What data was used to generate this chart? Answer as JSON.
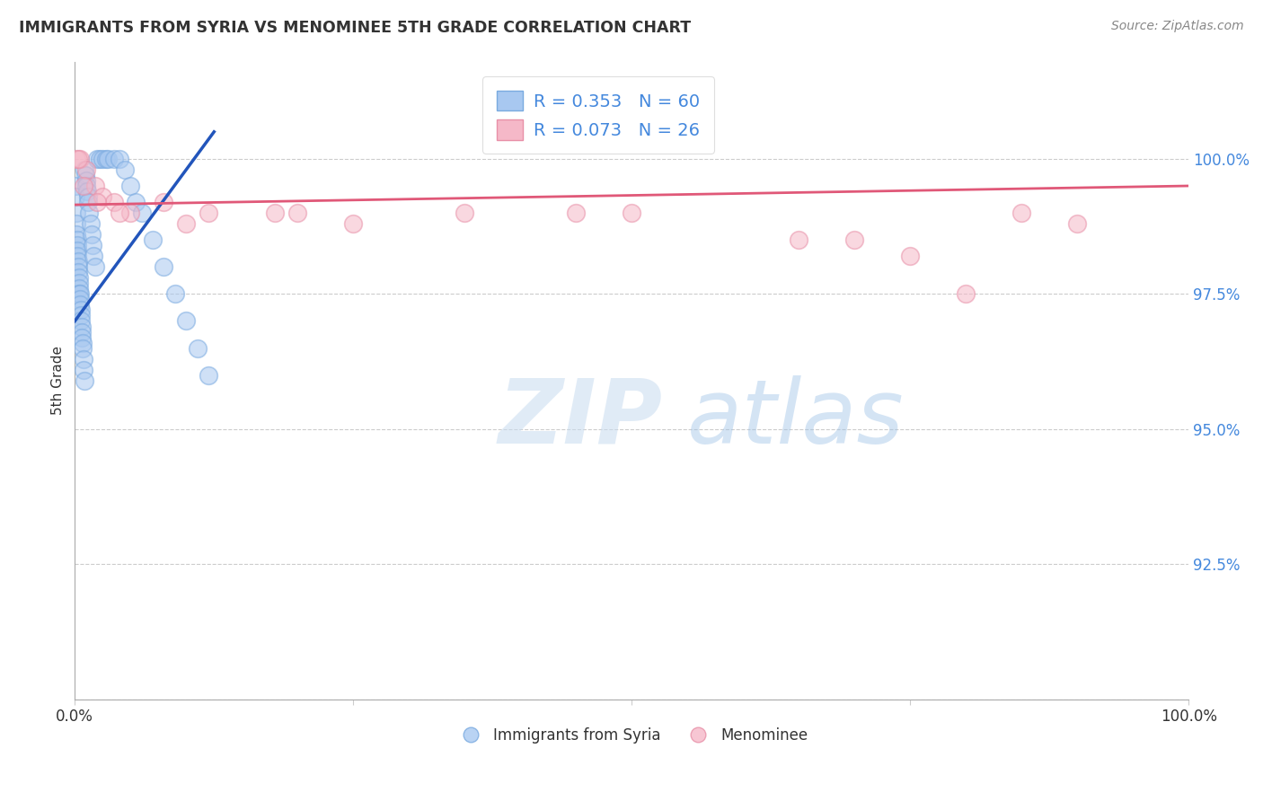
{
  "title": "IMMIGRANTS FROM SYRIA VS MENOMINEE 5TH GRADE CORRELATION CHART",
  "source": "Source: ZipAtlas.com",
  "ylabel": "5th Grade",
  "y_ticks": [
    90.0,
    92.5,
    95.0,
    97.5,
    100.0
  ],
  "y_tick_labels": [
    "",
    "92.5%",
    "95.0%",
    "97.5%",
    "100.0%"
  ],
  "xlim": [
    0.0,
    100.0
  ],
  "ylim": [
    90.0,
    101.8
  ],
  "legend1_label": "R = 0.353   N = 60",
  "legend2_label": "R = 0.073   N = 26",
  "legend_bottom_label1": "Immigrants from Syria",
  "legend_bottom_label2": "Menominee",
  "blue_color": "#A8C8F0",
  "blue_edge_color": "#7AAAE0",
  "pink_color": "#F5B8C8",
  "pink_edge_color": "#E890A8",
  "blue_line_color": "#2255BB",
  "pink_line_color": "#E05878",
  "blue_scatter_x": [
    0.05,
    0.08,
    0.1,
    0.12,
    0.15,
    0.18,
    0.2,
    0.22,
    0.25,
    0.28,
    0.3,
    0.32,
    0.35,
    0.38,
    0.4,
    0.42,
    0.45,
    0.48,
    0.5,
    0.52,
    0.55,
    0.58,
    0.6,
    0.62,
    0.65,
    0.68,
    0.7,
    0.75,
    0.8,
    0.85,
    0.9,
    0.95,
    1.0,
    1.05,
    1.1,
    1.15,
    1.2,
    1.3,
    1.4,
    1.5,
    1.6,
    1.7,
    1.8,
    2.0,
    2.2,
    2.5,
    2.8,
    3.0,
    3.5,
    4.0,
    4.5,
    5.0,
    5.5,
    6.0,
    7.0,
    8.0,
    9.0,
    10.0,
    11.0,
    12.0
  ],
  "blue_scatter_y": [
    99.5,
    99.3,
    99.0,
    98.8,
    98.6,
    98.5,
    98.4,
    98.3,
    98.2,
    98.1,
    98.0,
    97.9,
    97.8,
    97.7,
    97.6,
    97.5,
    97.5,
    97.4,
    97.3,
    97.2,
    97.1,
    97.0,
    96.9,
    96.8,
    96.7,
    96.6,
    96.5,
    96.3,
    96.1,
    95.9,
    99.8,
    99.7,
    99.6,
    99.5,
    99.4,
    99.3,
    99.2,
    99.0,
    98.8,
    98.6,
    98.4,
    98.2,
    98.0,
    100.0,
    100.0,
    100.0,
    100.0,
    100.0,
    100.0,
    100.0,
    99.8,
    99.5,
    99.2,
    99.0,
    98.5,
    98.0,
    97.5,
    97.0,
    96.5,
    96.0
  ],
  "pink_scatter_x": [
    0.15,
    0.5,
    1.0,
    1.8,
    2.5,
    3.5,
    5.0,
    8.0,
    12.0,
    18.0,
    25.0,
    35.0,
    50.0,
    65.0,
    75.0,
    85.0,
    90.0,
    0.3,
    0.8,
    2.0,
    4.0,
    10.0,
    20.0,
    45.0,
    70.0,
    80.0
  ],
  "pink_scatter_y": [
    100.0,
    100.0,
    99.8,
    99.5,
    99.3,
    99.2,
    99.0,
    99.2,
    99.0,
    99.0,
    98.8,
    99.0,
    99.0,
    98.5,
    98.2,
    99.0,
    98.8,
    100.0,
    99.5,
    99.2,
    99.0,
    98.8,
    99.0,
    99.0,
    98.5,
    97.5
  ],
  "blue_trend_x": [
    0.0,
    12.5
  ],
  "blue_trend_y": [
    97.0,
    100.5
  ],
  "pink_trend_x": [
    0.0,
    100.0
  ],
  "pink_trend_y": [
    99.15,
    99.5
  ],
  "watermark_zip": "ZIP",
  "watermark_atlas": "atlas",
  "background_color": "#FFFFFF",
  "grid_color": "#CCCCCC"
}
